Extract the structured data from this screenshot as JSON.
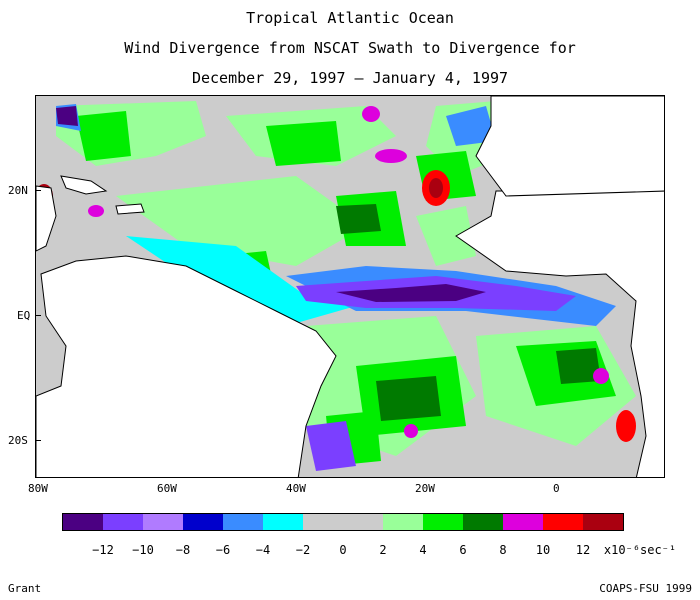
{
  "title": {
    "line1": "Tropical Atlantic Ocean",
    "line2": "Wind Divergence from NSCAT Swath to Divergence for",
    "line3": "December 29, 1997 – January 4, 1997"
  },
  "axes": {
    "lat_labels": [
      "20N",
      "EQ",
      "20S"
    ],
    "lon_labels": [
      "80W",
      "60W",
      "40W",
      "20W",
      "0"
    ]
  },
  "colorbar": {
    "colors": [
      "#4b0082",
      "#7b3fff",
      "#b07bff",
      "#0000cc",
      "#3a8cff",
      "#00ffff",
      "#cccccc",
      "#cccccc",
      "#99ff99",
      "#00ee00",
      "#007a00",
      "#dd00dd",
      "#ff0000",
      "#aa0010"
    ],
    "labels": [
      "−12",
      "−10",
      "−8",
      "−6",
      "−4",
      "−2",
      "0",
      "2",
      "4",
      "6",
      "8",
      "10",
      "12"
    ],
    "unit": "x10⁻⁶sec⁻¹"
  },
  "footer": {
    "left": "Grant",
    "right": "COAPS-FSU 1999"
  },
  "map_layers": {
    "ocean_base_color": "#cccccc",
    "land_color": "#ffffff",
    "coast_color": "#000000"
  }
}
